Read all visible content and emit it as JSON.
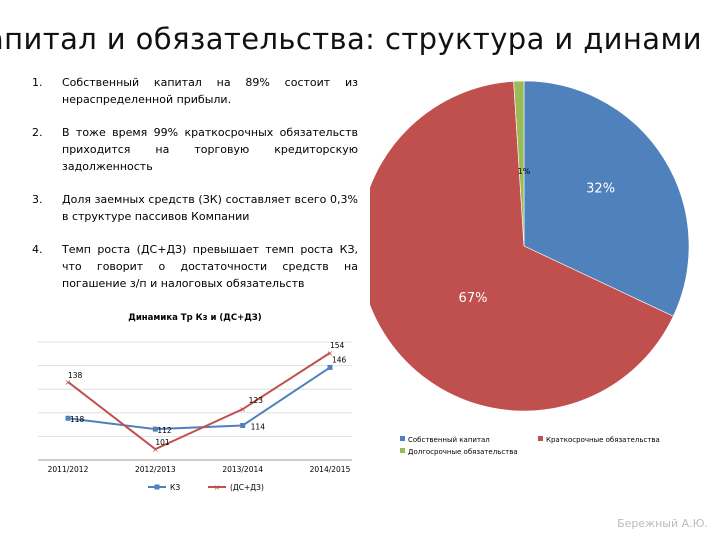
{
  "slide": {
    "title": "апитал и обязательства: структура и динами",
    "footer": "Бережный А.Ю."
  },
  "bullets": [
    {
      "num": "1.",
      "text": "Собственный капитал на 89% состоит из нераспределенной прибыли."
    },
    {
      "num": "2.",
      "text": "В тоже время 99% краткосрочных обязательств приходится на торговую кредиторскую задолженность"
    },
    {
      "num": "3.",
      "text": "Доля заемных средств (ЗК) составляет всего 0,3% в структуре пассивов Компании"
    },
    {
      "num": "4.",
      "text": "Темп роста (ДС+ДЗ) превышает темп роста КЗ, что говорит о достаточности средств на погашение з/п и налоговых обязательств"
    }
  ],
  "chart_data": [
    {
      "type": "line",
      "title": "Динамика Тр Кз и (ДС+ДЗ)",
      "categories": [
        "2011/2012",
        "2012/2013",
        "2013/2014",
        "2014/2015"
      ],
      "series": [
        {
          "name": "КЗ",
          "color": "#4f81bd",
          "values": [
            118,
            112,
            114,
            146
          ],
          "labels": [
            "118",
            "112",
            "114",
            "146"
          ]
        },
        {
          "name": "(ДС+ДЗ)",
          "color": "#c0504d",
          "values": [
            138,
            101,
            123,
            154
          ],
          "labels": [
            "138",
            "101",
            "123",
            "154"
          ]
        }
      ],
      "ylim": [
        95,
        160
      ],
      "grid": true,
      "legend": "bottom"
    },
    {
      "type": "pie",
      "slices": [
        {
          "name": "Собственный капитал",
          "value": 32,
          "label": "32%",
          "color": "#4f81bd"
        },
        {
          "name": "Краткосрочные обязательства",
          "value": 67,
          "label": "67%",
          "color": "#c0504d"
        },
        {
          "name": "Долгосрочные обязательства",
          "value": 1,
          "label": "1%",
          "color": "#9bbb59"
        }
      ],
      "legend": "bottom"
    }
  ]
}
